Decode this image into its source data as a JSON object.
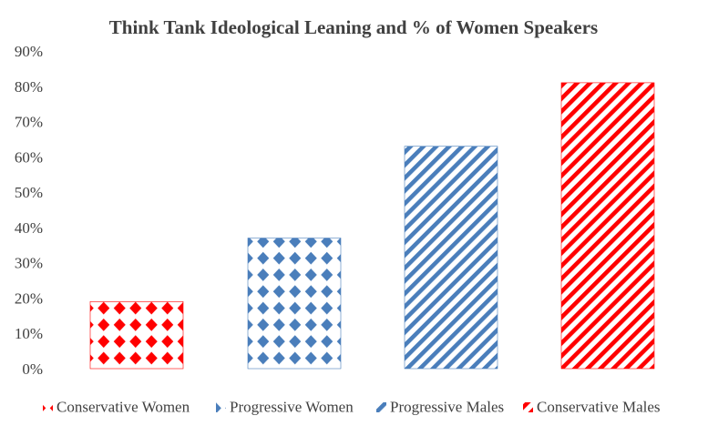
{
  "chart_data": {
    "type": "bar",
    "title": "Think Tank Ideological Leaning and % of Women Speakers",
    "xlabel": "",
    "ylabel": "",
    "ylim": [
      0,
      90
    ],
    "ytick_step": 10,
    "ytick_labels": [
      "0%",
      "10%",
      "20%",
      "30%",
      "40%",
      "50%",
      "60%",
      "70%",
      "80%",
      "90%"
    ],
    "grid": false,
    "legend_position": "bottom",
    "categories": [
      "Conservative Women",
      "Progressive Women",
      "Progressive Males",
      "Conservative Males"
    ],
    "values": [
      19,
      37,
      63,
      81
    ],
    "series_styles": [
      {
        "color": "#ff0000",
        "pattern": "diamonds"
      },
      {
        "color": "#4a7ebb",
        "pattern": "diamonds"
      },
      {
        "color": "#4a7ebb",
        "pattern": "diagonal-stripes"
      },
      {
        "color": "#ff0000",
        "pattern": "diagonal-stripes"
      }
    ]
  }
}
